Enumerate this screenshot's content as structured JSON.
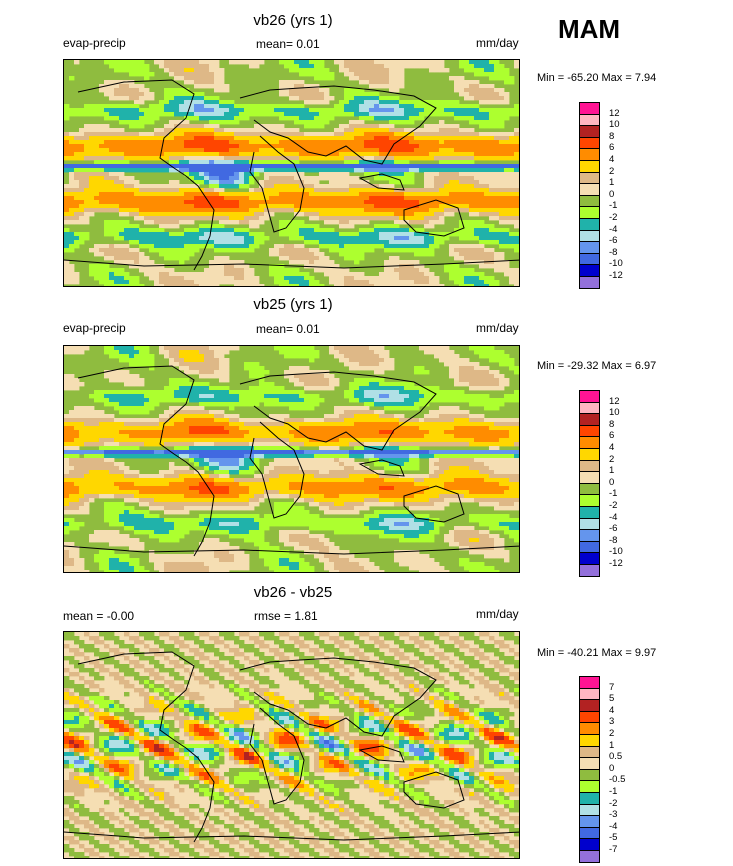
{
  "season": "MAM",
  "panels": [
    {
      "title": "vb26 (yrs 1)",
      "left_label": "evap-precip",
      "center_label": "mean=  0.01",
      "right_label": "mm/day",
      "minmax": "Min = -65.20 Max =   7.94",
      "colorbar": {
        "labels": [
          "12",
          "10",
          "8",
          "6",
          "4",
          "2",
          "1",
          "0",
          "-1",
          "-2",
          "-4",
          "-6",
          "-8",
          "-10",
          "-12"
        ],
        "colors": [
          "#ff1493",
          "#ffb6c1",
          "#b22222",
          "#ff4500",
          "#ff8c00",
          "#ffd700",
          "#deb887",
          "#f5deb3",
          "#8fbc3f",
          "#adff2f",
          "#20b2aa",
          "#b0e0e6",
          "#6495ed",
          "#4169e1",
          "#0000cd",
          "#9370db"
        ]
      }
    },
    {
      "title": "vb25 (yrs 1)",
      "left_label": "evap-precip",
      "center_label": "mean=  0.01",
      "right_label": "mm/day",
      "minmax": "Min = -29.32 Max =   6.97",
      "colorbar": {
        "labels": [
          "12",
          "10",
          "8",
          "6",
          "4",
          "2",
          "1",
          "0",
          "-1",
          "-2",
          "-4",
          "-6",
          "-8",
          "-10",
          "-12"
        ],
        "colors": [
          "#ff1493",
          "#ffb6c1",
          "#b22222",
          "#ff4500",
          "#ff8c00",
          "#ffd700",
          "#deb887",
          "#f5deb3",
          "#8fbc3f",
          "#adff2f",
          "#20b2aa",
          "#b0e0e6",
          "#6495ed",
          "#4169e1",
          "#0000cd",
          "#9370db"
        ]
      }
    },
    {
      "title": "vb26 - vb25",
      "left_label": "mean = -0.00",
      "center_label": "rmse =  1.81",
      "right_label": "mm/day",
      "minmax": "Min = -40.21 Max =   9.97",
      "colorbar": {
        "labels": [
          "7",
          "5",
          "4",
          "3",
          "2",
          "1",
          "0.5",
          "0",
          "-0.5",
          "-1",
          "-2",
          "-3",
          "-4",
          "-5",
          "-7"
        ],
        "colors": [
          "#ff1493",
          "#ffb6c1",
          "#b22222",
          "#ff4500",
          "#ff8c00",
          "#ffd700",
          "#deb887",
          "#f5deb3",
          "#8fbc3f",
          "#adff2f",
          "#20b2aa",
          "#b0e0e6",
          "#6495ed",
          "#4169e1",
          "#0000cd",
          "#9370db"
        ]
      }
    }
  ],
  "chart_data": [
    {
      "type": "heatmap",
      "title": "vb26 (yrs 1)",
      "variable": "evap-precip",
      "units": "mm/day",
      "mean": 0.01,
      "min": -65.2,
      "max": 7.94,
      "contour_levels": [
        -12,
        -10,
        -8,
        -6,
        -4,
        -2,
        -1,
        0,
        1,
        2,
        4,
        6,
        8,
        10,
        12
      ]
    },
    {
      "type": "heatmap",
      "title": "vb25 (yrs 1)",
      "variable": "evap-precip",
      "units": "mm/day",
      "mean": 0.01,
      "min": -29.32,
      "max": 6.97,
      "contour_levels": [
        -12,
        -10,
        -8,
        -6,
        -4,
        -2,
        -1,
        0,
        1,
        2,
        4,
        6,
        8,
        10,
        12
      ]
    },
    {
      "type": "heatmap",
      "title": "vb26 - vb25",
      "units": "mm/day",
      "mean": -0.0,
      "rmse": 1.81,
      "min": -40.21,
      "max": 9.97,
      "contour_levels": [
        -7,
        -5,
        -4,
        -3,
        -2,
        -1,
        -0.5,
        0,
        0.5,
        1,
        2,
        3,
        4,
        5,
        7
      ]
    }
  ]
}
